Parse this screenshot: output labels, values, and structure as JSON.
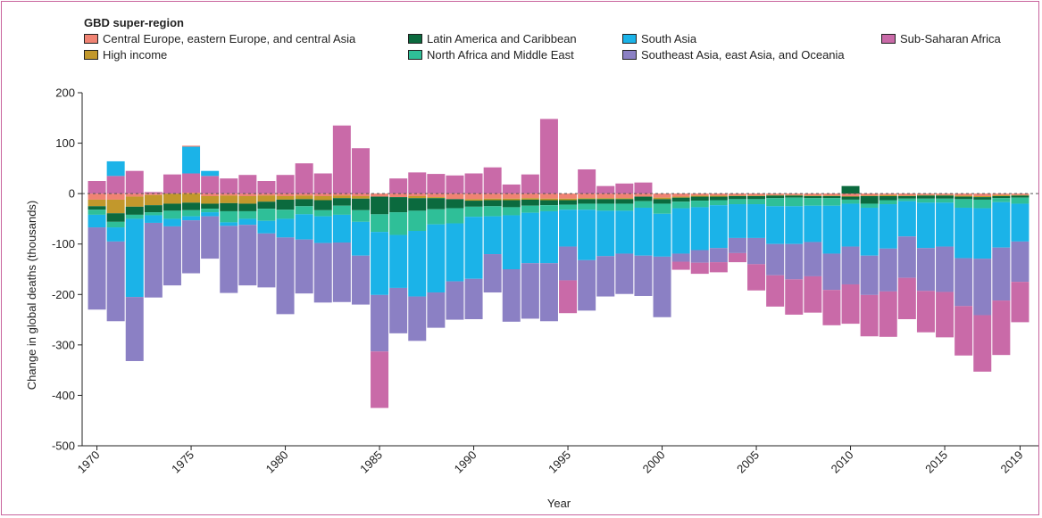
{
  "chart_data": {
    "type": "bar",
    "stacked": true,
    "legend_title": "GBD super-region",
    "xlabel": "Year",
    "ylabel": "Change in global deaths (thousands)",
    "ylim": [
      -500,
      200
    ],
    "yticks": [
      200,
      100,
      0,
      -100,
      -200,
      -300,
      -400,
      -500
    ],
    "xtick_labels": [
      "1970",
      "1975",
      "1980",
      "1985",
      "1990",
      "1995",
      "2000",
      "2005",
      "2010",
      "2015",
      "2019"
    ],
    "zero_line": "dashed",
    "categories": [
      1970,
      1971,
      1972,
      1973,
      1974,
      1975,
      1976,
      1977,
      1978,
      1979,
      1980,
      1981,
      1982,
      1983,
      1984,
      1985,
      1986,
      1987,
      1988,
      1989,
      1990,
      1991,
      1992,
      1993,
      1994,
      1995,
      1996,
      1997,
      1998,
      1999,
      2000,
      2001,
      2002,
      2003,
      2004,
      2005,
      2006,
      2007,
      2008,
      2009,
      2010,
      2011,
      2012,
      2013,
      2014,
      2015,
      2016,
      2017,
      2018,
      2019
    ],
    "series": [
      {
        "name": "Central Europe, eastern Europe, and central Asia",
        "color": "#f08373",
        "values": [
          -12,
          -12,
          -6,
          -3,
          0,
          2,
          -5,
          -4,
          -5,
          -4,
          -5,
          -4,
          -5,
          -4,
          -5,
          -6,
          -7,
          -5,
          -7,
          -11,
          -11,
          -10,
          -10,
          -9,
          -10,
          -10,
          -9,
          -9,
          -9,
          -6,
          -8,
          -6,
          -4,
          -4,
          -4,
          -4,
          -3,
          -3,
          -4,
          -4,
          -5,
          -4,
          -3,
          -4,
          -3,
          -3,
          -4,
          -5,
          -3,
          -3
        ]
      },
      {
        "name": "High income",
        "color": "#c2982c",
        "values": [
          -13,
          -27,
          -20,
          -20,
          -20,
          -18,
          -15,
          -15,
          -15,
          -12,
          -7,
          -7,
          -8,
          -5,
          -5,
          0,
          0,
          -4,
          -2,
          0,
          -3,
          -3,
          -3,
          -3,
          -3,
          -3,
          -2,
          -2,
          -2,
          0,
          -3,
          -2,
          -2,
          -2,
          -1,
          -1,
          -1,
          -1,
          -1,
          -1,
          -1,
          -1,
          -2,
          -1,
          -1,
          -1,
          -2,
          -2,
          -2,
          -1
        ]
      },
      {
        "name": "Latin America and Caribbean",
        "color": "#0b6a3e",
        "values": [
          -7,
          -17,
          -16,
          -14,
          -14,
          -15,
          -10,
          -16,
          -15,
          -14,
          -20,
          -14,
          -20,
          -15,
          -23,
          -35,
          -30,
          -25,
          -22,
          -18,
          -12,
          -12,
          -14,
          -12,
          -10,
          -9,
          -9,
          -9,
          -9,
          -9,
          -9,
          -8,
          -8,
          -7,
          -6,
          -6,
          -5,
          -4,
          -4,
          -4,
          -6,
          -15,
          -8,
          -5,
          -6,
          -6,
          -5,
          -5,
          -4,
          -4
        ]
      },
      {
        "name": "North Africa and Middle East",
        "color": "#2fbf98",
        "values": [
          -10,
          -11,
          -8,
          -6,
          -16,
          -12,
          -7,
          -22,
          -15,
          -24,
          -18,
          -16,
          -12,
          -18,
          -23,
          -35,
          -45,
          -40,
          -30,
          -30,
          -20,
          -20,
          -16,
          -14,
          -12,
          -10,
          -12,
          -14,
          -14,
          -13,
          -20,
          -13,
          -13,
          -10,
          -10,
          -10,
          -16,
          -17,
          -15,
          -15,
          -8,
          -8,
          -8,
          -5,
          -8,
          -8,
          -17,
          -17,
          -8,
          -12
        ]
      },
      {
        "name": "South Asia",
        "color": "#1bb3e8",
        "values": [
          -25,
          -28,
          -155,
          -15,
          -15,
          -8,
          -8,
          -7,
          -12,
          -25,
          -37,
          -50,
          -53,
          -55,
          -67,
          -125,
          -105,
          -130,
          -135,
          -115,
          -123,
          -75,
          -107,
          -100,
          -103,
          -73,
          -100,
          -90,
          -85,
          -95,
          -85,
          -90,
          -85,
          -85,
          -67,
          -67,
          -75,
          -75,
          -72,
          -95,
          -85,
          -95,
          -88,
          -70,
          -90,
          -87,
          -100,
          -100,
          -90,
          -75
        ]
      },
      {
        "name": "Southeast Asia, east Asia, and Oceania",
        "color": "#8b80c4",
        "values": [
          -163,
          -158,
          -127,
          -148,
          -117,
          -105,
          -84,
          -133,
          -120,
          -107,
          -152,
          -107,
          -118,
          -118,
          -97,
          -112,
          -90,
          -88,
          -70,
          -76,
          -80,
          -76,
          -104,
          -110,
          -115,
          -67,
          -100,
          -80,
          -80,
          -80,
          -120,
          -16,
          -25,
          -28,
          -30,
          -52,
          -62,
          -70,
          -68,
          -72,
          -75,
          -78,
          -85,
          -82,
          -85,
          -90,
          -95,
          -112,
          -105,
          -80
        ]
      },
      {
        "name": "Sub-Saharan Africa",
        "color": "#c96aa8",
        "values": [
          25,
          35,
          45,
          3,
          38,
          38,
          35,
          30,
          37,
          25,
          37,
          60,
          40,
          135,
          90,
          -112,
          30,
          42,
          39,
          36,
          40,
          52,
          18,
          38,
          148,
          -65,
          48,
          15,
          20,
          22,
          0,
          -16,
          -22,
          -20,
          -18,
          -52,
          -62,
          -70,
          -72,
          -70,
          -78,
          -82,
          -90,
          -82,
          -82,
          -90,
          -98,
          -112,
          -108,
          -80
        ]
      }
    ],
    "positive_extras": [
      {
        "category": 1971,
        "series": "South Asia",
        "value": 29
      },
      {
        "category": 1975,
        "series": "South Asia",
        "value": 53
      },
      {
        "category": 1975,
        "series": "Central Europe, eastern Europe, and central Asia",
        "value": 2
      },
      {
        "category": 1976,
        "series": "South Asia",
        "value": 10
      },
      {
        "category": 2010,
        "series": "Latin America and Caribbean",
        "value": 15
      }
    ]
  }
}
